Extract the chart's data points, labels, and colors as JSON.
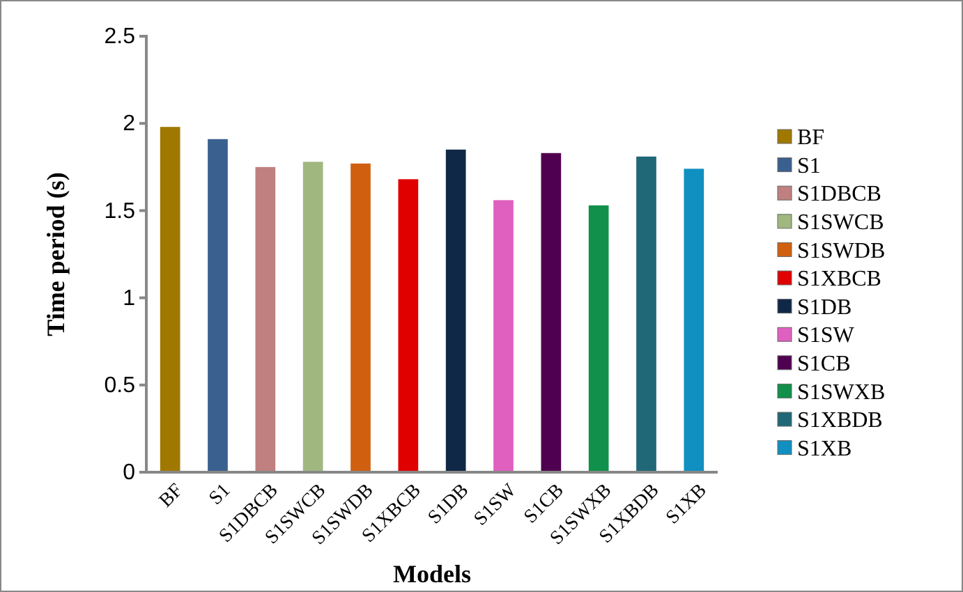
{
  "chart_data": {
    "type": "bar",
    "xlabel": "Models",
    "ylabel": "Time period (s)",
    "categories": [
      "BF",
      "S1",
      "S1DBCB",
      "S1SWCB",
      "S1SWDB",
      "S1XBCB",
      "S1DB",
      "S1SW",
      "S1CB",
      "S1SWXB",
      "S1XBDB",
      "S1XB"
    ],
    "series": [
      {
        "name": "BF",
        "color": "#a07800",
        "values": [
          1.98,
          null,
          null,
          null,
          null,
          null,
          null,
          null,
          null,
          null,
          null,
          null
        ]
      },
      {
        "name": "S1",
        "color": "#3a6090",
        "values": [
          null,
          1.91,
          null,
          null,
          null,
          null,
          null,
          null,
          null,
          null,
          null,
          null
        ]
      },
      {
        "name": "S1DBCB",
        "color": "#c08080",
        "values": [
          null,
          null,
          1.75,
          null,
          null,
          null,
          null,
          null,
          null,
          null,
          null,
          null
        ]
      },
      {
        "name": "S1SWCB",
        "color": "#a0b880",
        "values": [
          null,
          null,
          null,
          1.78,
          null,
          null,
          null,
          null,
          null,
          null,
          null,
          null
        ]
      },
      {
        "name": "S1SWDB",
        "color": "#d06010",
        "values": [
          null,
          null,
          null,
          null,
          1.77,
          null,
          null,
          null,
          null,
          null,
          null,
          null
        ]
      },
      {
        "name": "S1XBCB",
        "color": "#e00000",
        "values": [
          null,
          null,
          null,
          null,
          null,
          1.68,
          null,
          null,
          null,
          null,
          null,
          null
        ]
      },
      {
        "name": "S1DB",
        "color": "#102848",
        "values": [
          null,
          null,
          null,
          null,
          null,
          null,
          1.85,
          null,
          null,
          null,
          null,
          null
        ]
      },
      {
        "name": "S1SW",
        "color": "#e060c0",
        "values": [
          null,
          null,
          null,
          null,
          null,
          null,
          null,
          1.56,
          null,
          null,
          null,
          null
        ]
      },
      {
        "name": "S1CB",
        "color": "#500050",
        "values": [
          null,
          null,
          null,
          null,
          null,
          null,
          null,
          null,
          1.83,
          null,
          null,
          null
        ]
      },
      {
        "name": "S1SWXB",
        "color": "#10904a",
        "values": [
          null,
          null,
          null,
          null,
          null,
          null,
          null,
          null,
          null,
          1.53,
          null,
          null
        ]
      },
      {
        "name": "S1XBDB",
        "color": "#206878",
        "values": [
          null,
          null,
          null,
          null,
          null,
          null,
          null,
          null,
          null,
          null,
          1.81,
          null
        ]
      },
      {
        "name": "S1XB",
        "color": "#1090c0",
        "values": [
          null,
          null,
          null,
          null,
          null,
          null,
          null,
          null,
          null,
          null,
          null,
          1.74
        ]
      }
    ],
    "ylim": [
      0,
      2.5
    ],
    "yticks": [
      0,
      0.5,
      1,
      1.5,
      2,
      2.5
    ],
    "grid": false,
    "legend": "right"
  }
}
